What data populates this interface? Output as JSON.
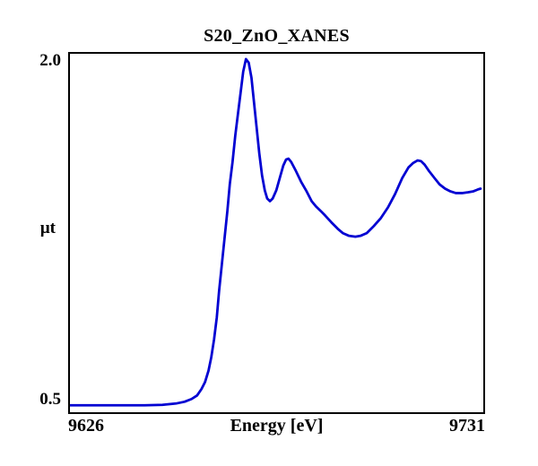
{
  "figure": {
    "background_color": "#ffffff",
    "text_color": "#000000"
  },
  "chart_data": {
    "type": "line",
    "title": "S20_ZnO_XANES",
    "xlabel": "Energy [eV]",
    "ylabel": "μt",
    "xlim": [
      9626,
      9731
    ],
    "ylim": [
      0.437,
      2.04
    ],
    "xticks": [
      {
        "value": 9626,
        "label": "9626"
      },
      {
        "value": 9731,
        "label": "9731"
      }
    ],
    "yticks": [
      {
        "value": 2.0,
        "label": "2.0"
      },
      {
        "value": 0.5,
        "label": "0.5"
      }
    ],
    "grid": false,
    "legend": "none",
    "line_color": "#0101d2",
    "line_width": 2.8,
    "frame_color": "#000000",
    "series": [
      {
        "name": "S20_ZnO_XANES",
        "points": [
          [
            9626.0,
            0.468
          ],
          [
            9636.0,
            0.468
          ],
          [
            9645.0,
            0.468
          ],
          [
            9649.5,
            0.47
          ],
          [
            9652.9,
            0.476
          ],
          [
            9655.1,
            0.484
          ],
          [
            9656.9,
            0.496
          ],
          [
            9658.3,
            0.512
          ],
          [
            9659.4,
            0.54
          ],
          [
            9660.3,
            0.571
          ],
          [
            9661.2,
            0.623
          ],
          [
            9661.9,
            0.683
          ],
          [
            9662.6,
            0.762
          ],
          [
            9663.3,
            0.861
          ],
          [
            9663.9,
            0.98
          ],
          [
            9664.6,
            1.099
          ],
          [
            9665.3,
            1.218
          ],
          [
            9666.0,
            1.337
          ],
          [
            9666.6,
            1.456
          ],
          [
            9667.3,
            1.556
          ],
          [
            9668.0,
            1.675
          ],
          [
            9668.7,
            1.774
          ],
          [
            9669.4,
            1.873
          ],
          [
            9670.0,
            1.96
          ],
          [
            9670.7,
            2.016
          ],
          [
            9671.4,
            2.0
          ],
          [
            9672.1,
            1.933
          ],
          [
            9672.7,
            1.833
          ],
          [
            9673.4,
            1.714
          ],
          [
            9674.1,
            1.595
          ],
          [
            9674.8,
            1.496
          ],
          [
            9675.5,
            1.429
          ],
          [
            9676.1,
            1.393
          ],
          [
            9676.8,
            1.381
          ],
          [
            9677.5,
            1.393
          ],
          [
            9678.4,
            1.429
          ],
          [
            9679.3,
            1.484
          ],
          [
            9680.2,
            1.54
          ],
          [
            9680.9,
            1.567
          ],
          [
            9681.5,
            1.571
          ],
          [
            9682.2,
            1.556
          ],
          [
            9683.4,
            1.516
          ],
          [
            9684.7,
            1.468
          ],
          [
            9686.1,
            1.425
          ],
          [
            9687.4,
            1.381
          ],
          [
            9688.5,
            1.357
          ],
          [
            9689.7,
            1.337
          ],
          [
            9690.8,
            1.317
          ],
          [
            9692.4,
            1.286
          ],
          [
            9694.0,
            1.258
          ],
          [
            9695.3,
            1.238
          ],
          [
            9696.9,
            1.226
          ],
          [
            9698.5,
            1.222
          ],
          [
            9699.8,
            1.226
          ],
          [
            9701.4,
            1.238
          ],
          [
            9703.2,
            1.27
          ],
          [
            9705.0,
            1.306
          ],
          [
            9706.8,
            1.353
          ],
          [
            9708.6,
            1.413
          ],
          [
            9710.4,
            1.484
          ],
          [
            9712.0,
            1.532
          ],
          [
            9713.2,
            1.552
          ],
          [
            9714.3,
            1.563
          ],
          [
            9715.2,
            1.56
          ],
          [
            9716.1,
            1.544
          ],
          [
            9717.2,
            1.516
          ],
          [
            9718.6,
            1.484
          ],
          [
            9719.9,
            1.456
          ],
          [
            9721.3,
            1.437
          ],
          [
            9722.6,
            1.425
          ],
          [
            9724.0,
            1.417
          ],
          [
            9725.6,
            1.417
          ],
          [
            9727.2,
            1.421
          ],
          [
            9728.5,
            1.425
          ],
          [
            9729.6,
            1.433
          ],
          [
            9730.3,
            1.437
          ]
        ]
      }
    ]
  }
}
